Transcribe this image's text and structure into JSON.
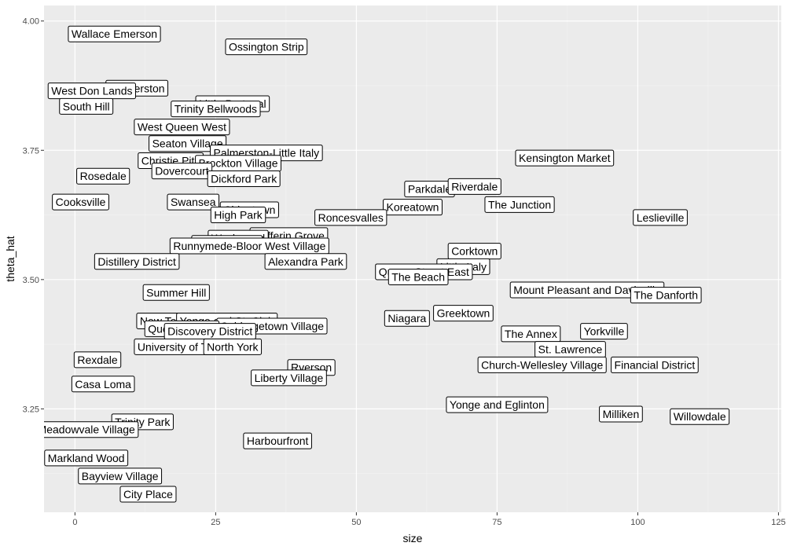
{
  "chart_data": {
    "type": "scatter",
    "title": "",
    "xlabel": "size",
    "ylabel": "theta_hat",
    "xlim": [
      -5.5,
      125.5
    ],
    "ylim": [
      3.05,
      4.03
    ],
    "x_ticks": [
      0,
      25,
      50,
      75,
      100,
      125
    ],
    "x_tick_labels": [
      "0",
      "25",
      "50",
      "75",
      "100",
      "125"
    ],
    "y_ticks": [
      3.25,
      3.5,
      3.75,
      4.0
    ],
    "y_tick_labels": [
      "3.25",
      "3.50",
      "3.75",
      "4.00"
    ],
    "grid": true,
    "legend": "none",
    "colors": {
      "panel": "#ebebeb",
      "grid_major": "#ffffff",
      "grid_minor": "#f4f4f4",
      "label_fill": "#ffffff",
      "label_border": "#000000"
    },
    "points": [
      {
        "label": "Wallace Emerson",
        "x": 7,
        "y": 3.975
      },
      {
        "label": "Ossington Strip",
        "x": 34,
        "y": 3.95
      },
      {
        "label": "Little Portugal",
        "x": 28,
        "y": 3.84
      },
      {
        "label": "Trinity Bellwoods",
        "x": 25,
        "y": 3.83
      },
      {
        "label": "Palmerston",
        "x": 11,
        "y": 3.87
      },
      {
        "label": "West Don Lands",
        "x": 3,
        "y": 3.865
      },
      {
        "label": "South Hill",
        "x": 2,
        "y": 3.835
      },
      {
        "label": "West Queen West",
        "x": 19,
        "y": 3.795
      },
      {
        "label": "Seaton Village",
        "x": 20,
        "y": 3.763
      },
      {
        "label": "Palmerston-Little Italy",
        "x": 34,
        "y": 3.745
      },
      {
        "label": "Christie Pits",
        "x": 17,
        "y": 3.73
      },
      {
        "label": "Brockton Village",
        "x": 29,
        "y": 3.725
      },
      {
        "label": "Rosedale",
        "x": 5,
        "y": 3.7
      },
      {
        "label": "Dovercourt",
        "x": 19,
        "y": 3.71
      },
      {
        "label": "Dickford Park",
        "x": 30,
        "y": 3.695
      },
      {
        "label": "Kensington Market",
        "x": 87,
        "y": 3.735
      },
      {
        "label": "Cooksville",
        "x": 1,
        "y": 3.65
      },
      {
        "label": "Swansea",
        "x": 21,
        "y": 3.65
      },
      {
        "label": "Parkdale",
        "x": 63,
        "y": 3.675
      },
      {
        "label": "Riverdale",
        "x": 71,
        "y": 3.68
      },
      {
        "label": "The Junction",
        "x": 79,
        "y": 3.645
      },
      {
        "label": "Koreatown",
        "x": 60,
        "y": 3.64
      },
      {
        "label": "Chinatown",
        "x": 31,
        "y": 3.635
      },
      {
        "label": "High Park",
        "x": 29,
        "y": 3.625
      },
      {
        "label": "Roncesvalles",
        "x": 49,
        "y": 3.62
      },
      {
        "label": "Leslieville",
        "x": 104,
        "y": 3.62
      },
      {
        "label": "Dufferin Grove",
        "x": 38,
        "y": 3.585
      },
      {
        "label": "Wychwood",
        "x": 29,
        "y": 3.58
      },
      {
        "label": "Upper Beach",
        "x": 27,
        "y": 3.57
      },
      {
        "label": "Runnymede-Bloor West Village",
        "x": 31,
        "y": 3.565
      },
      {
        "label": "Distillery District",
        "x": 11,
        "y": 3.535
      },
      {
        "label": "Alexandra Park",
        "x": 41,
        "y": 3.535
      },
      {
        "label": "Corktown",
        "x": 71,
        "y": 3.555
      },
      {
        "label": "Little Italy",
        "x": 69,
        "y": 3.525
      },
      {
        "label": "Queen Street East",
        "x": 62,
        "y": 3.515
      },
      {
        "label": "The Beach",
        "x": 61,
        "y": 3.505
      },
      {
        "label": "Summer Hill",
        "x": 18,
        "y": 3.475
      },
      {
        "label": "Mount Pleasant and Davisville",
        "x": 91,
        "y": 3.48
      },
      {
        "label": "The Danforth",
        "x": 105,
        "y": 3.47
      },
      {
        "label": "Greektown",
        "x": 69,
        "y": 3.435
      },
      {
        "label": "Niagara",
        "x": 59,
        "y": 3.425
      },
      {
        "label": "New Toronto",
        "x": 17,
        "y": 3.42
      },
      {
        "label": "Yonge and St. Clair",
        "x": 27,
        "y": 3.42
      },
      {
        "label": "Cabbagetown Village",
        "x": 35,
        "y": 3.41
      },
      {
        "label": "Queens Quay",
        "x": 19,
        "y": 3.405
      },
      {
        "label": "Discovery District",
        "x": 24,
        "y": 3.4
      },
      {
        "label": "The Annex",
        "x": 81,
        "y": 3.395
      },
      {
        "label": "Yorkville",
        "x": 94,
        "y": 3.4
      },
      {
        "label": "Rexdale",
        "x": 4,
        "y": 3.345
      },
      {
        "label": "University of Toronto",
        "x": 20,
        "y": 3.37
      },
      {
        "label": "North York",
        "x": 28,
        "y": 3.37
      },
      {
        "label": "St. Lawrence",
        "x": 88,
        "y": 3.365
      },
      {
        "label": "Church-Wellesley Village",
        "x": 83,
        "y": 3.335
      },
      {
        "label": "Financial District",
        "x": 103,
        "y": 3.335
      },
      {
        "label": "Ryerson",
        "x": 42,
        "y": 3.33
      },
      {
        "label": "Liberty Village",
        "x": 38,
        "y": 3.31
      },
      {
        "label": "Casa Loma",
        "x": 5,
        "y": 3.298
      },
      {
        "label": "Yonge and Eglinton",
        "x": 75,
        "y": 3.258
      },
      {
        "label": "Milliken",
        "x": 97,
        "y": 3.24
      },
      {
        "label": "Willowdale",
        "x": 111,
        "y": 3.235
      },
      {
        "label": "Trinity Park",
        "x": 12,
        "y": 3.225
      },
      {
        "label": "Meadowvale Village",
        "x": 2,
        "y": 3.21
      },
      {
        "label": "Harbourfront",
        "x": 36,
        "y": 3.188
      },
      {
        "label": "Markland Wood",
        "x": 2,
        "y": 3.155
      },
      {
        "label": "Bayview Village",
        "x": 8,
        "y": 3.12
      },
      {
        "label": "City Place",
        "x": 13,
        "y": 3.085
      }
    ]
  }
}
